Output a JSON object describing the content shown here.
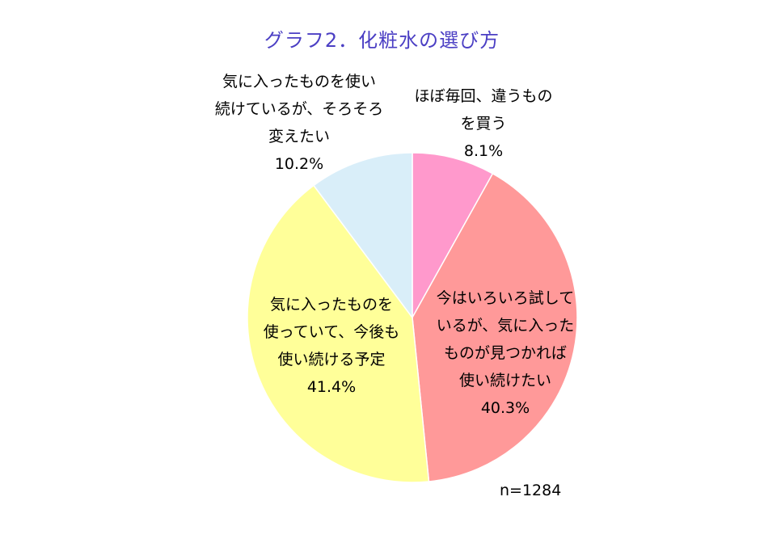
{
  "chart_data": {
    "type": "pie",
    "title": "グラフ2．化粧水の選び方",
    "note": "n=1284",
    "slices": [
      {
        "label": [
          "ほぼ毎回、違うもの",
          "を買う"
        ],
        "value": 8.1,
        "value_label": "8.1%",
        "color": "#ff99cc"
      },
      {
        "label": [
          "今はいろいろ試して",
          "いるが、気に入った",
          "ものが見つかれば",
          "使い続けたい"
        ],
        "value": 40.3,
        "value_label": "40.3%",
        "color": "#ff9999"
      },
      {
        "label": [
          "気に入ったものを",
          "使っていて、今後も",
          "使い続ける予定"
        ],
        "value": 41.4,
        "value_label": "41.4%",
        "color": "#ffff99"
      },
      {
        "label": [
          "気に入ったものを使い",
          "続けているが、そろそろ",
          "変えたい"
        ],
        "value": 10.2,
        "value_label": "10.2%",
        "color": "#d9eef9"
      }
    ]
  }
}
